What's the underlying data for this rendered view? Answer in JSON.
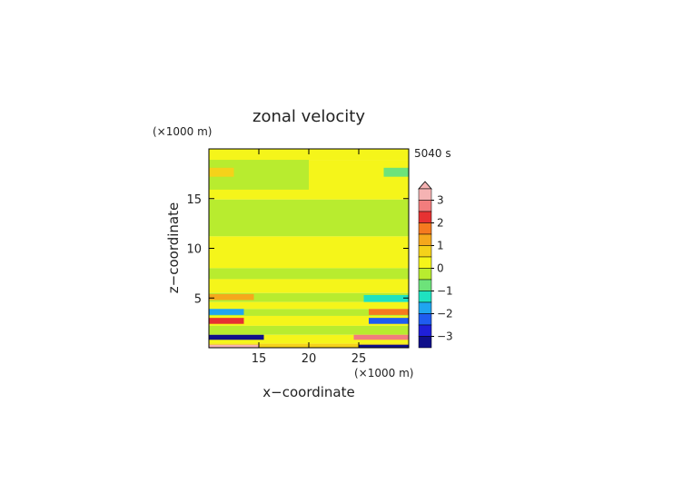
{
  "chart_data": {
    "type": "heatmap",
    "title": "zonal velocity",
    "xlabel": "x−coordinate",
    "ylabel": "z−coordinate",
    "x_unit": "(×1000 m)",
    "y_unit": "(×1000 m)",
    "time_label": "5040 s",
    "xlim": [
      10,
      30
    ],
    "ylim": [
      0,
      20
    ],
    "x_ticks": [
      15,
      20,
      25
    ],
    "y_ticks": [
      5,
      10,
      15
    ],
    "colorbar": {
      "ticks": [
        3,
        2,
        1,
        0,
        -1,
        -2,
        -3
      ],
      "tick_labels": [
        "3",
        "2",
        "1",
        "0",
        "−1",
        "−2",
        "−3"
      ],
      "levels": [
        {
          "max": 3.5,
          "min": 3.0,
          "color": "#f5b3b3"
        },
        {
          "max": 3.0,
          "min": 2.5,
          "color": "#f27d7d"
        },
        {
          "max": 2.5,
          "min": 2.0,
          "color": "#e63232"
        },
        {
          "max": 2.0,
          "min": 1.5,
          "color": "#f57a1f"
        },
        {
          "max": 1.5,
          "min": 1.0,
          "color": "#f5a81c"
        },
        {
          "max": 1.0,
          "min": 0.5,
          "color": "#f5d21a"
        },
        {
          "max": 0.5,
          "min": 0.0,
          "color": "#f5f51a"
        },
        {
          "max": 0.0,
          "min": -0.5,
          "color": "#b8ec2f"
        },
        {
          "max": -0.5,
          "min": -1.0,
          "color": "#6de37a"
        },
        {
          "max": -1.0,
          "min": -1.5,
          "color": "#1fe2c0"
        },
        {
          "max": -1.5,
          "min": -2.0,
          "color": "#1fa5f0"
        },
        {
          "max": -2.0,
          "min": -2.5,
          "color": "#1f5cf0"
        },
        {
          "max": -2.5,
          "min": -3.0,
          "color": "#1f1fd8"
        },
        {
          "max": -3.0,
          "min": -3.5,
          "color": "#10108a"
        }
      ]
    },
    "regions": [
      {
        "x": [
          10,
          30
        ],
        "z": [
          18.9,
          20
        ],
        "value": 0.2
      },
      {
        "x": [
          10,
          30
        ],
        "z": [
          14.9,
          18.9
        ],
        "value": 0.1
      },
      {
        "x": [
          10,
          20
        ],
        "z": [
          15.9,
          18.9
        ],
        "value": -0.3
      },
      {
        "x": [
          10,
          12.5
        ],
        "z": [
          17.2,
          18.1
        ],
        "value": 0.8
      },
      {
        "x": [
          27.5,
          30
        ],
        "z": [
          17.2,
          18.1
        ],
        "value": -0.8
      },
      {
        "x": [
          10,
          30
        ],
        "z": [
          11.2,
          14.9
        ],
        "value": -0.2
      },
      {
        "x": [
          10,
          30
        ],
        "z": [
          8.0,
          11.2
        ],
        "value": 0.2
      },
      {
        "x": [
          10,
          30
        ],
        "z": [
          6.9,
          8.0
        ],
        "value": -0.2
      },
      {
        "x": [
          10,
          30
        ],
        "z": [
          5.5,
          6.9
        ],
        "value": 0.2
      },
      {
        "x": [
          10,
          30
        ],
        "z": [
          4.6,
          5.5
        ],
        "value": -0.2
      },
      {
        "x": [
          10,
          30
        ],
        "z": [
          3.9,
          4.6
        ],
        "value": 0.3
      },
      {
        "x": [
          10,
          30
        ],
        "z": [
          3.2,
          3.9
        ],
        "value": -0.4
      },
      {
        "x": [
          10,
          30
        ],
        "z": [
          2.2,
          3.2
        ],
        "value": 0.4
      },
      {
        "x": [
          10,
          30
        ],
        "z": [
          1.3,
          2.2
        ],
        "value": 0.0
      },
      {
        "x": [
          10,
          30
        ],
        "z": [
          0.4,
          1.3
        ],
        "value": 0.2
      },
      {
        "x": [
          10,
          30
        ],
        "z": [
          0,
          0.4
        ],
        "value": 0.7
      },
      {
        "x": [
          10,
          14.5
        ],
        "z": [
          4.8,
          5.4
        ],
        "value": 1.2
      },
      {
        "x": [
          25.5,
          30
        ],
        "z": [
          4.6,
          5.3
        ],
        "value": -1.2
      },
      {
        "x": [
          10,
          13.5
        ],
        "z": [
          3.3,
          3.9
        ],
        "value": -1.7
      },
      {
        "x": [
          26,
          30
        ],
        "z": [
          3.3,
          3.9
        ],
        "value": 1.7
      },
      {
        "x": [
          10,
          13.5
        ],
        "z": [
          2.4,
          3.0
        ],
        "value": 2.3
      },
      {
        "x": [
          26,
          30
        ],
        "z": [
          2.4,
          3.0
        ],
        "value": -2.0
      },
      {
        "x": [
          10,
          15.5
        ],
        "z": [
          0.8,
          1.3
        ],
        "value": -3.2
      },
      {
        "x": [
          24.5,
          30
        ],
        "z": [
          0.8,
          1.3
        ],
        "value": 2.8
      },
      {
        "x": [
          10,
          15
        ],
        "z": [
          0,
          0.3
        ],
        "value": 3.2
      },
      {
        "x": [
          25,
          30
        ],
        "z": [
          0,
          0.3
        ],
        "value": -3.0
      }
    ]
  }
}
